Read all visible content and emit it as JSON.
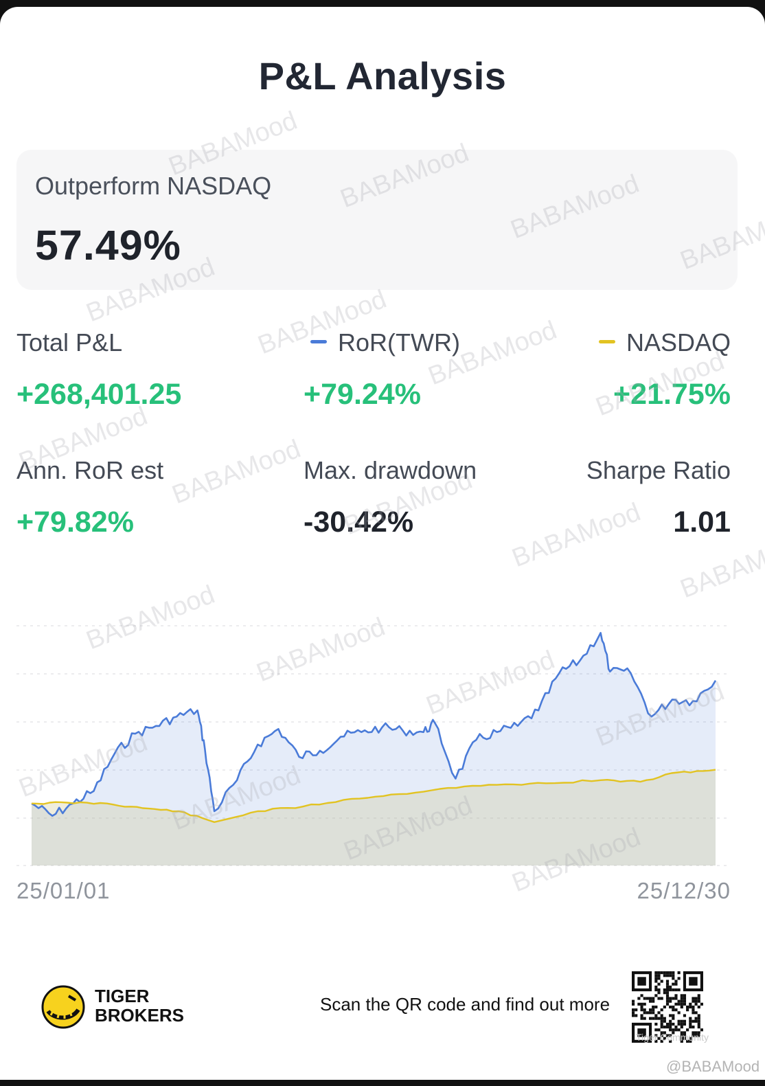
{
  "header": {
    "title": "P&L Analysis"
  },
  "summary": {
    "label": "Outperform NASDAQ",
    "value": "57.49%"
  },
  "stats": {
    "total_pl": {
      "label": "Total P&L",
      "value": "+268,401.25"
    },
    "ror": {
      "label": "RoR(TWR)",
      "value": "+79.24%"
    },
    "nasdaq": {
      "label": "NASDAQ",
      "value": "+21.75%"
    },
    "ann_ror": {
      "label": "Ann. RoR est",
      "value": "+79.82%"
    },
    "max_dd": {
      "label": "Max. drawdown",
      "value": "-30.42%"
    },
    "sharpe": {
      "label": "Sharpe Ratio",
      "value": "1.01"
    }
  },
  "colors": {
    "ror": "#4a7bd8",
    "nasdaq": "#e2c322",
    "positive": "#27c07a"
  },
  "chart_data": {
    "type": "area",
    "x_start_label": "25/01/01",
    "x_end_label": "25/12/30",
    "x_range": [
      "2025-01-01",
      "2025-12-30"
    ],
    "y_unit": "% return",
    "ylim": [
      -40,
      115
    ],
    "grid": "horizontal dotted",
    "series": [
      {
        "name": "RoR(TWR)",
        "x": [
          "2025-01-01",
          "2025-01-12",
          "2025-01-23",
          "2025-02-03",
          "2025-02-14",
          "2025-02-25",
          "2025-03-08",
          "2025-03-19",
          "2025-03-30",
          "2025-04-03",
          "2025-04-08",
          "2025-04-20",
          "2025-05-01",
          "2025-05-12",
          "2025-05-23",
          "2025-06-03",
          "2025-06-14",
          "2025-06-25",
          "2025-07-06",
          "2025-07-17",
          "2025-07-28",
          "2025-08-03",
          "2025-08-14",
          "2025-08-25",
          "2025-09-05",
          "2025-09-16",
          "2025-09-27",
          "2025-10-08",
          "2025-10-19",
          "2025-10-30",
          "2025-11-04",
          "2025-11-15",
          "2025-11-26",
          "2025-12-07",
          "2025-12-18",
          "2025-12-30"
        ],
        "values": [
          0,
          -8,
          0,
          8,
          32,
          45,
          50,
          56,
          60,
          35,
          -5,
          15,
          38,
          48,
          30,
          34,
          43,
          46,
          49,
          47,
          46,
          52,
          16,
          41,
          46,
          50,
          60,
          84,
          92,
          110,
          85,
          84,
          56,
          67,
          66,
          79.24
        ]
      },
      {
        "name": "NASDAQ",
        "x": [
          "2025-01-01",
          "2025-01-20",
          "2025-02-10",
          "2025-03-01",
          "2025-03-20",
          "2025-04-08",
          "2025-05-01",
          "2025-05-25",
          "2025-06-20",
          "2025-07-15",
          "2025-08-10",
          "2025-09-05",
          "2025-10-01",
          "2025-10-30",
          "2025-11-20",
          "2025-12-10",
          "2025-12-30"
        ],
        "values": [
          0,
          0.5,
          0,
          -3,
          -5,
          -12,
          -5,
          -2,
          3,
          6,
          10,
          12,
          13,
          15,
          14,
          20,
          21.75
        ]
      }
    ]
  },
  "footer": {
    "brand_line1": "TIGER",
    "brand_line2": "BROKERS",
    "scan_text": "Scan the QR code and find out more",
    "community": "Tiger Community",
    "handle": "@BABAMood"
  },
  "watermark": "BABAMood"
}
